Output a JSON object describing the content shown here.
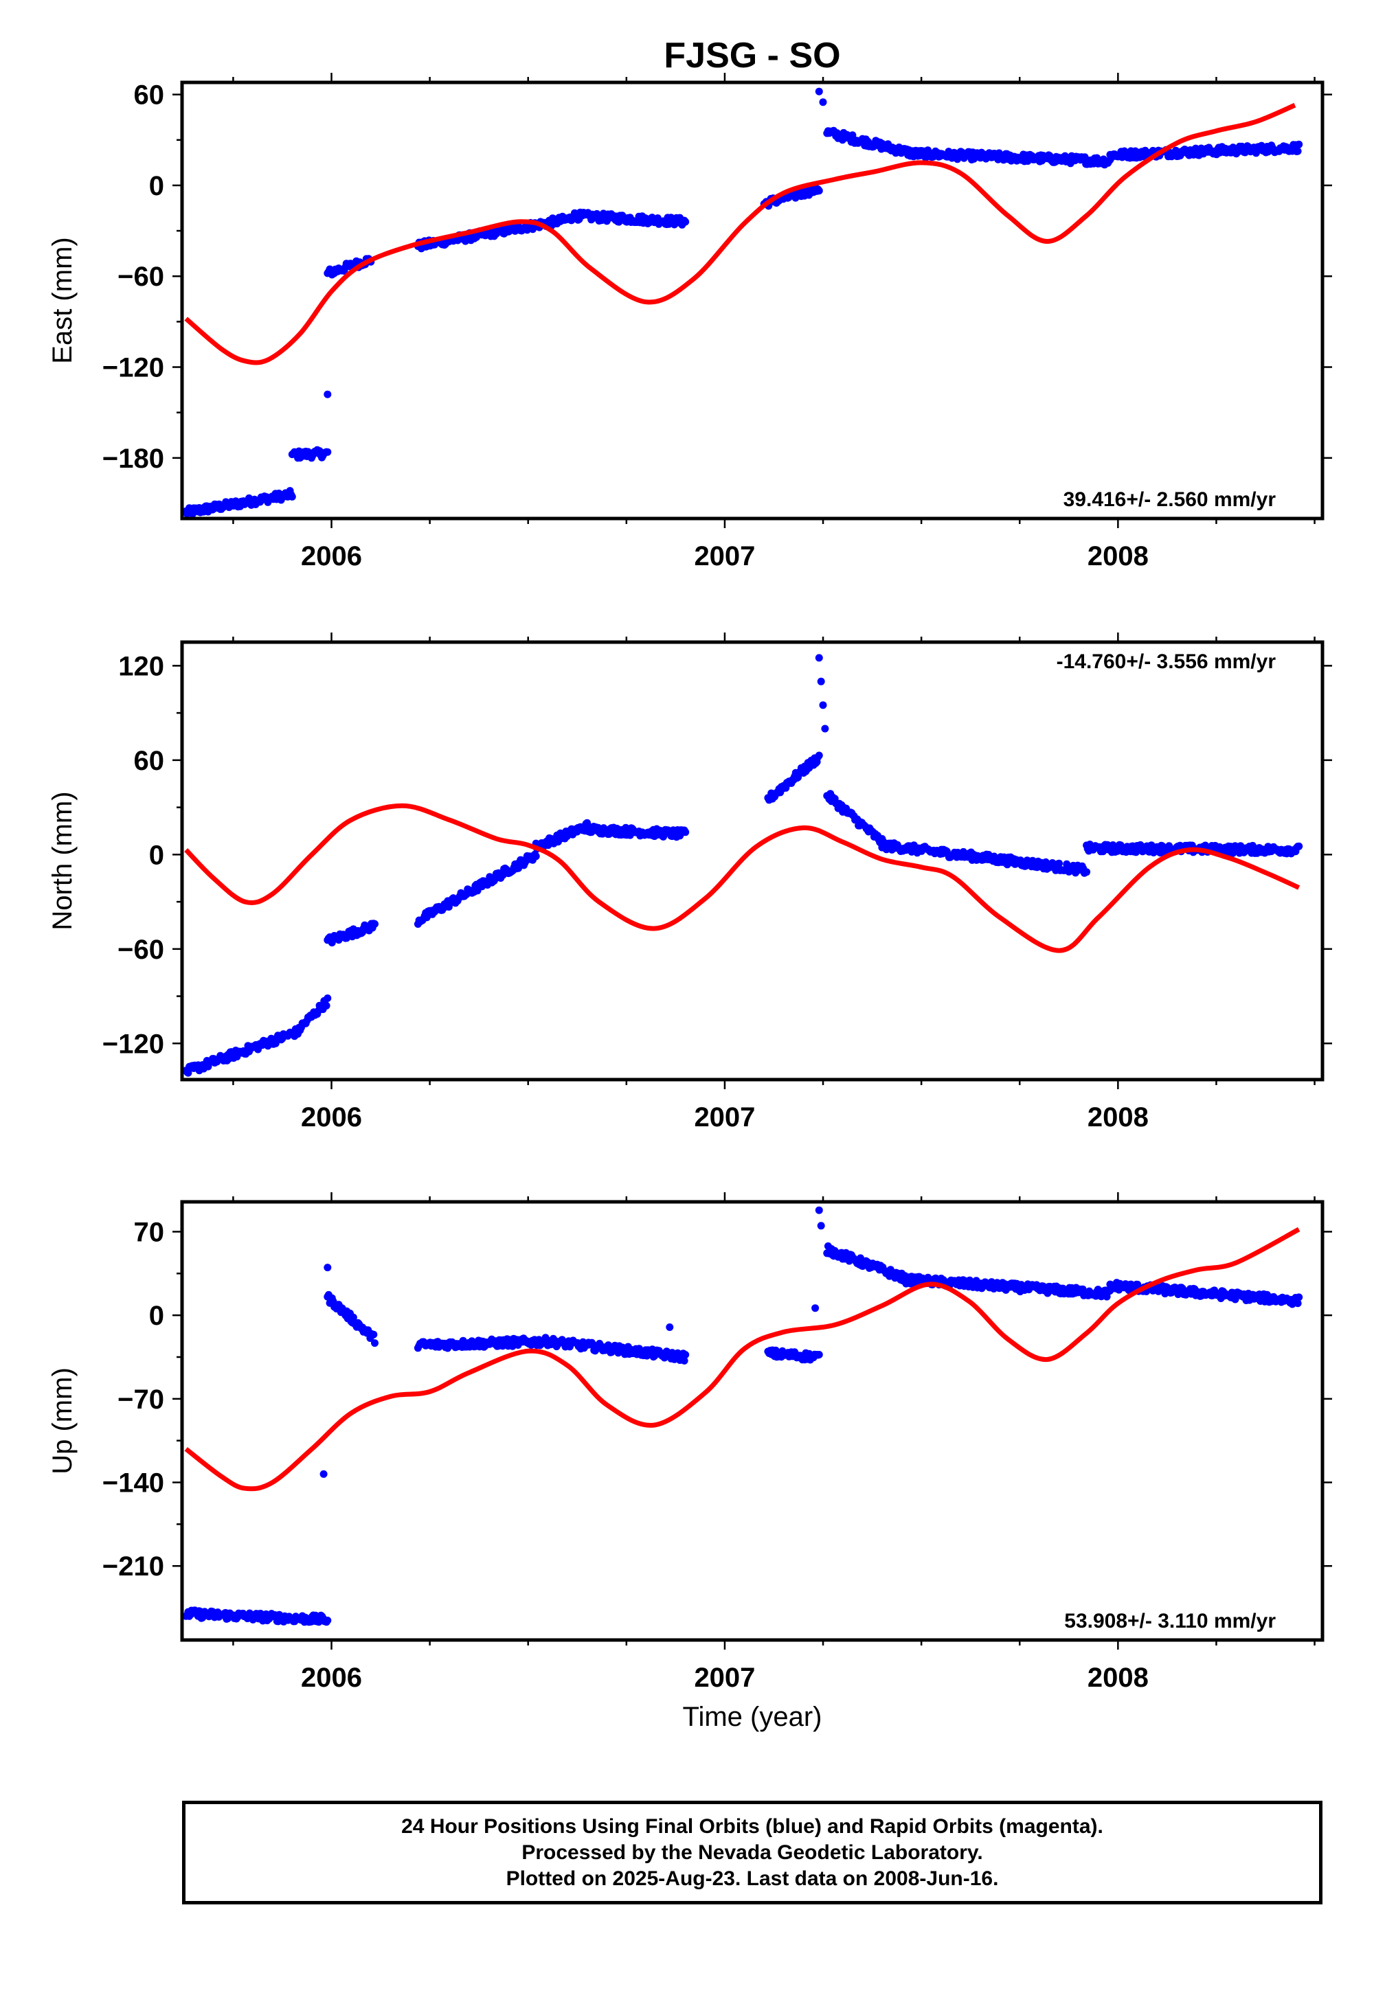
{
  "title": "FJSG - SO",
  "xlabel": "Time (year)",
  "footer": {
    "line1": "24 Hour Positions Using Final Orbits (blue) and Rapid Orbits (magenta).",
    "line2": "Processed by the Nevada Geodetic Laboratory.",
    "line3": "Plotted on 2025-Aug-23. Last data on 2008-Jun-16."
  },
  "colors": {
    "observed": "#0000ff",
    "model": "#ff0000"
  },
  "chart_data": [
    {
      "type": "scatter",
      "ylabel": "East (mm)",
      "xlim": [
        2005.62,
        2008.52
      ],
      "ylim": [
        -220,
        68
      ],
      "yticks": [
        -180,
        -120,
        -60,
        0,
        60
      ],
      "xticks": [
        2006,
        2007,
        2008
      ],
      "rate_label": "39.416+/- 2.560 mm/yr",
      "rate_position": "bottom-right",
      "observed": {
        "segments": [
          {
            "start": 2005.63,
            "end": 2005.9,
            "values": [
              -216,
              -204
            ]
          },
          {
            "start": 2005.9,
            "end": 2005.99,
            "values": [
              -178,
              -177
            ]
          },
          {
            "start": 2005.99,
            "end": 2006.1,
            "values": [
              -58,
              -49
            ]
          },
          {
            "start": 2006.22,
            "end": 2006.61,
            "values": [
              -40,
              -22
            ]
          },
          {
            "start": 2006.61,
            "end": 2006.9,
            "values": [
              -20,
              -24
            ]
          },
          {
            "start": 2007.1,
            "end": 2007.24,
            "values": [
              -12,
              -2
            ]
          },
          {
            "start": 2007.26,
            "end": 2007.48,
            "values": [
              35,
              21
            ]
          },
          {
            "start": 2007.48,
            "end": 2007.98,
            "values": [
              21,
              16
            ]
          },
          {
            "start": 2007.98,
            "end": 2008.46,
            "values": [
              20,
              25
            ]
          }
        ],
        "outliers": [
          [
            2005.99,
            -138
          ],
          [
            2007.24,
            62
          ],
          [
            2007.25,
            55
          ]
        ]
      },
      "model_curve": [
        [
          2005.63,
          -88
        ],
        [
          2005.72,
          -108
        ],
        [
          2005.78,
          -116
        ],
        [
          2005.84,
          -115
        ],
        [
          2005.92,
          -98
        ],
        [
          2006.0,
          -70
        ],
        [
          2006.08,
          -52
        ],
        [
          2006.2,
          -40
        ],
        [
          2006.35,
          -31
        ],
        [
          2006.48,
          -24
        ],
        [
          2006.56,
          -30
        ],
        [
          2006.66,
          -55
        ],
        [
          2006.8,
          -77
        ],
        [
          2006.92,
          -62
        ],
        [
          2007.05,
          -25
        ],
        [
          2007.15,
          -5
        ],
        [
          2007.28,
          4
        ],
        [
          2007.38,
          9
        ],
        [
          2007.5,
          15
        ],
        [
          2007.6,
          8
        ],
        [
          2007.72,
          -20
        ],
        [
          2007.82,
          -37
        ],
        [
          2007.92,
          -20
        ],
        [
          2008.02,
          6
        ],
        [
          2008.15,
          28
        ],
        [
          2008.25,
          36
        ],
        [
          2008.35,
          42
        ],
        [
          2008.45,
          53
        ]
      ]
    },
    {
      "type": "scatter",
      "ylabel": "North (mm)",
      "xlim": [
        2005.62,
        2008.52
      ],
      "ylim": [
        -143,
        135
      ],
      "yticks": [
        -120,
        -60,
        0,
        60,
        120
      ],
      "xticks": [
        2006,
        2007,
        2008
      ],
      "rate_label": "-14.760+/- 3.556 mm/yr",
      "rate_position": "top-right",
      "observed": {
        "segments": [
          {
            "start": 2005.63,
            "end": 2005.92,
            "values": [
              -138,
              -112
            ]
          },
          {
            "start": 2005.92,
            "end": 2005.99,
            "values": [
              -110,
              -93
            ]
          },
          {
            "start": 2005.99,
            "end": 2006.11,
            "values": [
              -55,
              -45
            ]
          },
          {
            "start": 2006.22,
            "end": 2006.52,
            "values": [
              -42,
              0
            ]
          },
          {
            "start": 2006.52,
            "end": 2006.65,
            "values": [
              5,
              18
            ]
          },
          {
            "start": 2006.65,
            "end": 2006.9,
            "values": [
              16,
              13
            ]
          },
          {
            "start": 2007.11,
            "end": 2007.24,
            "values": [
              35,
              62
            ]
          },
          {
            "start": 2007.26,
            "end": 2007.4,
            "values": [
              38,
              8
            ]
          },
          {
            "start": 2007.4,
            "end": 2007.92,
            "values": [
              6,
              -10
            ]
          },
          {
            "start": 2007.92,
            "end": 2008.46,
            "values": [
              4,
              3
            ]
          }
        ],
        "outliers": [
          [
            2007.24,
            125
          ],
          [
            2007.245,
            110
          ],
          [
            2007.25,
            95
          ],
          [
            2007.255,
            80
          ]
        ]
      },
      "model_curve": [
        [
          2005.63,
          3
        ],
        [
          2005.7,
          -15
        ],
        [
          2005.78,
          -30
        ],
        [
          2005.85,
          -25
        ],
        [
          2005.95,
          0
        ],
        [
          2006.05,
          22
        ],
        [
          2006.18,
          31
        ],
        [
          2006.3,
          22
        ],
        [
          2006.42,
          10
        ],
        [
          2006.5,
          6
        ],
        [
          2006.58,
          -4
        ],
        [
          2006.68,
          -30
        ],
        [
          2006.82,
          -47
        ],
        [
          2006.95,
          -28
        ],
        [
          2007.08,
          5
        ],
        [
          2007.2,
          17
        ],
        [
          2007.3,
          8
        ],
        [
          2007.4,
          -3
        ],
        [
          2007.5,
          -8
        ],
        [
          2007.58,
          -14
        ],
        [
          2007.7,
          -40
        ],
        [
          2007.85,
          -61
        ],
        [
          2007.95,
          -40
        ],
        [
          2008.08,
          -8
        ],
        [
          2008.18,
          3
        ],
        [
          2008.28,
          -2
        ],
        [
          2008.38,
          -12
        ],
        [
          2008.46,
          -21
        ]
      ]
    },
    {
      "type": "scatter",
      "ylabel": "Up (mm)",
      "xlim": [
        2005.62,
        2008.52
      ],
      "ylim": [
        -272,
        95
      ],
      "yticks": [
        -210,
        -140,
        -70,
        0,
        70
      ],
      "xticks": [
        2006,
        2007,
        2008
      ],
      "rate_label": "53.908+/- 3.110 mm/yr",
      "rate_position": "bottom-right",
      "observed": {
        "segments": [
          {
            "start": 2005.63,
            "end": 2005.99,
            "values": [
              -250,
              -255
            ]
          },
          {
            "start": 2005.99,
            "end": 2006.11,
            "values": [
              15,
              -20
            ]
          },
          {
            "start": 2006.22,
            "end": 2006.55,
            "values": [
              -25,
              -22
            ]
          },
          {
            "start": 2006.55,
            "end": 2006.9,
            "values": [
              -22,
              -35
            ]
          },
          {
            "start": 2007.11,
            "end": 2007.24,
            "values": [
              -32,
              -35
            ]
          },
          {
            "start": 2007.26,
            "end": 2007.45,
            "values": [
              55,
              32
            ]
          },
          {
            "start": 2007.45,
            "end": 2007.98,
            "values": [
              30,
              18
            ]
          },
          {
            "start": 2007.98,
            "end": 2008.46,
            "values": [
              25,
              12
            ]
          }
        ],
        "outliers": [
          [
            2005.99,
            40
          ],
          [
            2005.98,
            -133
          ],
          [
            2007.24,
            88
          ],
          [
            2007.245,
            75
          ],
          [
            2007.23,
            6
          ],
          [
            2006.86,
            -10
          ]
        ]
      },
      "model_curve": [
        [
          2005.63,
          -112
        ],
        [
          2005.72,
          -135
        ],
        [
          2005.78,
          -145
        ],
        [
          2005.85,
          -140
        ],
        [
          2005.95,
          -112
        ],
        [
          2006.05,
          -82
        ],
        [
          2006.15,
          -68
        ],
        [
          2006.25,
          -64
        ],
        [
          2006.35,
          -48
        ],
        [
          2006.5,
          -30
        ],
        [
          2006.6,
          -42
        ],
        [
          2006.7,
          -75
        ],
        [
          2006.82,
          -92
        ],
        [
          2006.95,
          -65
        ],
        [
          2007.05,
          -28
        ],
        [
          2007.15,
          -14
        ],
        [
          2007.28,
          -8
        ],
        [
          2007.4,
          8
        ],
        [
          2007.52,
          26
        ],
        [
          2007.62,
          12
        ],
        [
          2007.72,
          -20
        ],
        [
          2007.82,
          -37
        ],
        [
          2007.92,
          -15
        ],
        [
          2008.0,
          10
        ],
        [
          2008.1,
          28
        ],
        [
          2008.2,
          38
        ],
        [
          2008.3,
          44
        ],
        [
          2008.46,
          72
        ]
      ]
    }
  ]
}
